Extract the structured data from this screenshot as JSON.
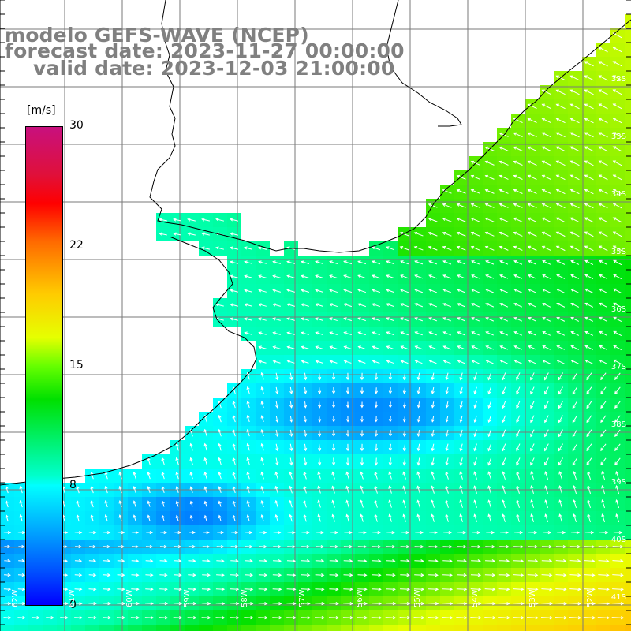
{
  "header": {
    "line1": "modelo GEFS-WAVE (NCEP)",
    "line2": "forecast date: 2023-11-27 00:00:00",
    "line3": "valid date: 2023-12-03 21:00:00"
  },
  "colorbar": {
    "unit": "[m/s]",
    "ticks": [
      "30",
      "22",
      "15",
      "8",
      "0"
    ],
    "colors": [
      "#c8107e",
      "#ff0000",
      "#ff6a00",
      "#ffcc00",
      "#00e000",
      "#00ffff",
      "#00aaff",
      "#0000ff"
    ]
  },
  "map": {
    "land_color": "#ffffff",
    "coast_color": "#000000",
    "grid_color": "#7a7a7a",
    "arrow_color": "#ffffff",
    "lat_labels": [
      "32S",
      "33S",
      "34S",
      "35S",
      "36S",
      "37S",
      "38S",
      "39S",
      "40S",
      "41S"
    ],
    "lon_labels": [
      "62W",
      "61W",
      "60W",
      "59W",
      "58W",
      "57W",
      "56W",
      "55W",
      "54W",
      "53W",
      "52W"
    ]
  }
}
